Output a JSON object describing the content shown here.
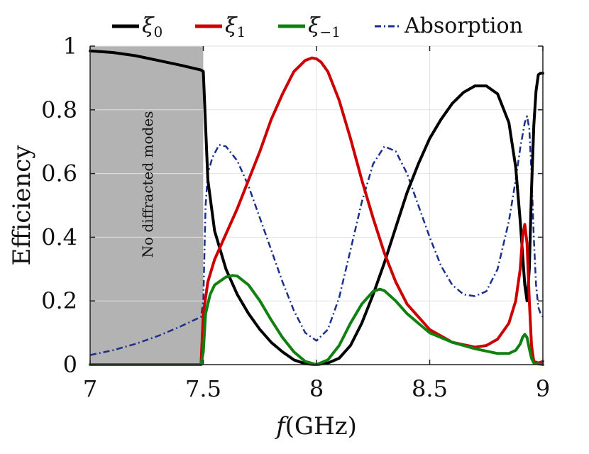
{
  "chart_data": {
    "type": "line",
    "xlabel": {
      "italic": "f",
      "rest": "(GHz)"
    },
    "ylabel": "Efficiency",
    "xlim": [
      7,
      9
    ],
    "ylim": [
      0,
      1
    ],
    "xticks": [
      7,
      7.5,
      8,
      8.5,
      9
    ],
    "xtick_labels": [
      "7",
      "7.5",
      "8",
      "8.5",
      "9"
    ],
    "yticks": [
      0,
      0.2,
      0.4,
      0.6,
      0.8,
      1
    ],
    "ytick_labels": [
      "0",
      "0.2",
      "0.4",
      "0.6",
      "0.8",
      "1"
    ],
    "grid": true,
    "legend_position": "top",
    "shaded_region": {
      "x_start": 7,
      "x_end": 7.5,
      "color": "#b3b3b3",
      "label": "No diffracted modes"
    },
    "series": [
      {
        "name": "ξ0",
        "symbol": "ξ",
        "subscript": "0",
        "color": "#000000",
        "style": "solid",
        "x": [
          7,
          7.1,
          7.2,
          7.3,
          7.4,
          7.49,
          7.5,
          7.52,
          7.55,
          7.6,
          7.65,
          7.7,
          7.75,
          7.8,
          7.85,
          7.9,
          7.95,
          8,
          8.05,
          8.1,
          8.15,
          8.2,
          8.25,
          8.3,
          8.35,
          8.4,
          8.45,
          8.5,
          8.55,
          8.6,
          8.65,
          8.7,
          8.75,
          8.8,
          8.85,
          8.88,
          8.9,
          8.92,
          8.93,
          8.94,
          8.95,
          8.96,
          8.97,
          8.98,
          8.99,
          9
        ],
        "y": [
          0.985,
          0.98,
          0.97,
          0.955,
          0.94,
          0.925,
          0.92,
          0.58,
          0.42,
          0.3,
          0.22,
          0.16,
          0.11,
          0.07,
          0.04,
          0.015,
          0.003,
          0.0,
          0.005,
          0.02,
          0.06,
          0.13,
          0.22,
          0.32,
          0.43,
          0.54,
          0.63,
          0.71,
          0.77,
          0.82,
          0.855,
          0.875,
          0.875,
          0.85,
          0.76,
          0.62,
          0.45,
          0.25,
          0.2,
          0.3,
          0.55,
          0.75,
          0.86,
          0.91,
          0.915,
          0.915
        ]
      },
      {
        "name": "ξ1",
        "symbol": "ξ",
        "subscript": "1",
        "color": "#cc0000",
        "style": "solid",
        "x": [
          7,
          7.49,
          7.5,
          7.52,
          7.55,
          7.6,
          7.65,
          7.7,
          7.75,
          7.8,
          7.85,
          7.9,
          7.95,
          7.98,
          8,
          8.02,
          8.05,
          8.1,
          8.15,
          8.2,
          8.25,
          8.3,
          8.35,
          8.4,
          8.5,
          8.6,
          8.7,
          8.75,
          8.8,
          8.85,
          8.88,
          8.9,
          8.91,
          8.92,
          8.93,
          8.94,
          8.95,
          8.96,
          8.98,
          9
        ],
        "y": [
          0,
          0,
          0.16,
          0.26,
          0.33,
          0.41,
          0.49,
          0.58,
          0.67,
          0.77,
          0.85,
          0.92,
          0.955,
          0.963,
          0.96,
          0.95,
          0.92,
          0.83,
          0.71,
          0.58,
          0.46,
          0.35,
          0.26,
          0.19,
          0.11,
          0.07,
          0.055,
          0.06,
          0.08,
          0.13,
          0.2,
          0.3,
          0.4,
          0.44,
          0.38,
          0.2,
          0.06,
          0.01,
          0.005,
          0.01
        ]
      },
      {
        "name": "ξ−1",
        "symbol": "ξ",
        "subscript": "−1",
        "color": "#108010",
        "style": "solid",
        "x": [
          7,
          7.49,
          7.5,
          7.51,
          7.53,
          7.55,
          7.6,
          7.63,
          7.65,
          7.7,
          7.75,
          7.8,
          7.85,
          7.9,
          7.95,
          8,
          8.05,
          8.1,
          8.15,
          8.2,
          8.25,
          8.28,
          8.3,
          8.35,
          8.4,
          8.45,
          8.5,
          8.6,
          8.7,
          8.8,
          8.85,
          8.88,
          8.9,
          8.91,
          8.92,
          8.93,
          8.94,
          8.95,
          8.96,
          9
        ],
        "y": [
          0,
          0,
          0.04,
          0.16,
          0.22,
          0.25,
          0.275,
          0.28,
          0.278,
          0.25,
          0.2,
          0.14,
          0.085,
          0.04,
          0.01,
          0.0,
          0.015,
          0.06,
          0.13,
          0.19,
          0.23,
          0.237,
          0.232,
          0.2,
          0.16,
          0.13,
          0.1,
          0.07,
          0.05,
          0.035,
          0.035,
          0.045,
          0.065,
          0.085,
          0.095,
          0.085,
          0.05,
          0.02,
          0.005,
          0
        ]
      },
      {
        "name": "Absorption",
        "symbol": "",
        "subscript": "",
        "color": "#1a2f8c",
        "style": "dashdot",
        "x": [
          7,
          7.1,
          7.2,
          7.3,
          7.4,
          7.49,
          7.5,
          7.51,
          7.52,
          7.54,
          7.57,
          7.6,
          7.65,
          7.7,
          7.75,
          7.8,
          7.85,
          7.9,
          7.95,
          8,
          8.05,
          8.1,
          8.15,
          8.2,
          8.25,
          8.3,
          8.35,
          8.4,
          8.45,
          8.5,
          8.55,
          8.6,
          8.65,
          8.7,
          8.75,
          8.8,
          8.85,
          8.88,
          8.9,
          8.92,
          8.93,
          8.94,
          8.95,
          8.96,
          8.97,
          8.98,
          8.99,
          9
        ],
        "y": [
          0.03,
          0.045,
          0.065,
          0.09,
          0.12,
          0.15,
          0.2,
          0.5,
          0.6,
          0.65,
          0.69,
          0.685,
          0.64,
          0.56,
          0.46,
          0.36,
          0.26,
          0.17,
          0.1,
          0.075,
          0.11,
          0.21,
          0.36,
          0.51,
          0.63,
          0.685,
          0.67,
          0.6,
          0.5,
          0.4,
          0.31,
          0.25,
          0.22,
          0.215,
          0.23,
          0.3,
          0.45,
          0.58,
          0.68,
          0.76,
          0.78,
          0.74,
          0.6,
          0.4,
          0.25,
          0.18,
          0.16,
          0.15
        ]
      }
    ]
  }
}
